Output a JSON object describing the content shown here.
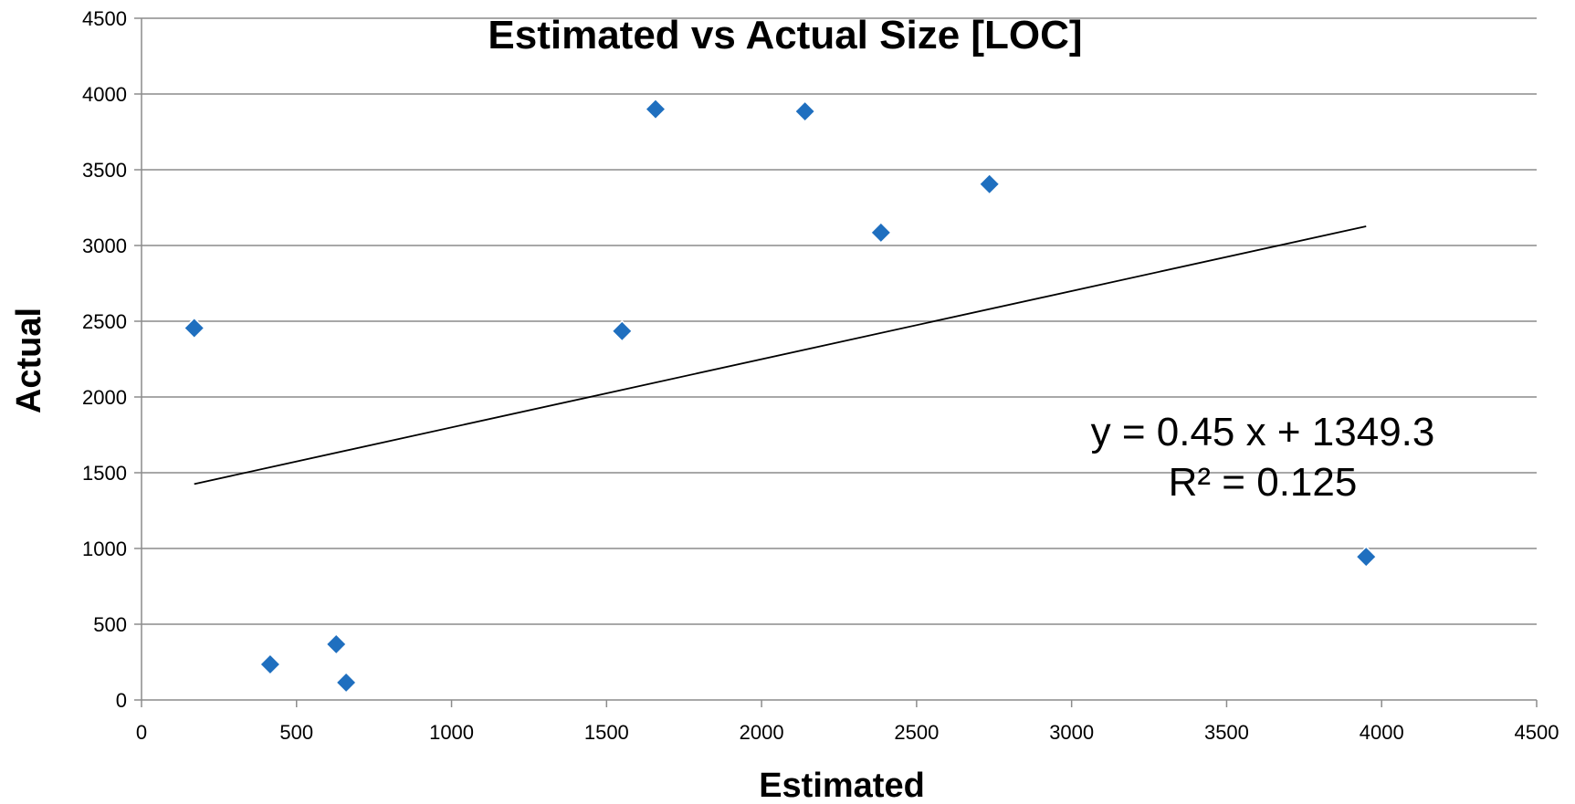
{
  "chart_data": {
    "type": "scatter",
    "title": "Estimated vs Actual Size [LOC]",
    "xlabel": "Estimated",
    "ylabel": "Actual",
    "xlim": [
      0,
      4500
    ],
    "ylim": [
      0,
      4500
    ],
    "x_ticks": [
      0,
      500,
      1000,
      1500,
      2000,
      2500,
      3000,
      3500,
      4000,
      4500
    ],
    "y_ticks": [
      0,
      500,
      1000,
      1500,
      2000,
      2500,
      3000,
      3500,
      4000,
      4500
    ],
    "grid": "horizontal",
    "marker": "diamond",
    "series": [
      {
        "color": "#1f6fbf",
        "points": [
          {
            "x": 170,
            "y": 2455
          },
          {
            "x": 415,
            "y": 235
          },
          {
            "x": 628,
            "y": 368
          },
          {
            "x": 660,
            "y": 115
          },
          {
            "x": 1550,
            "y": 2435
          },
          {
            "x": 1658,
            "y": 3900
          },
          {
            "x": 2140,
            "y": 3885
          },
          {
            "x": 2385,
            "y": 3085
          },
          {
            "x": 2735,
            "y": 3405
          },
          {
            "x": 3950,
            "y": 945
          }
        ]
      }
    ],
    "trendline": {
      "type": "linear",
      "color": "#000000",
      "slope": 0.45,
      "intercept": 1349.3,
      "x_start": 170,
      "x_end": 3950,
      "equation_text": "y = 0.45 x + 1349.3",
      "r2_text": "R² = 0.125"
    }
  }
}
